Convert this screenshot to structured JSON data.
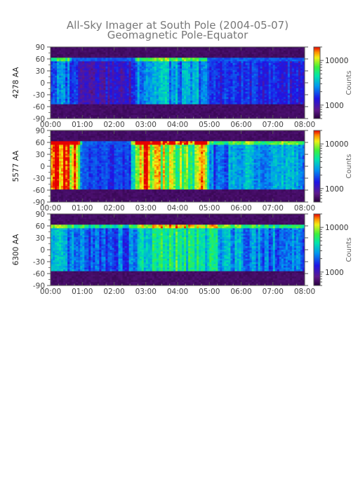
{
  "chart_data": {
    "type": "heatmap",
    "title": "All-Sky Imager at South Pole (2004-05-07)",
    "subtitle": "Geomagnetic Pole-Equator",
    "x_tick_labels": [
      "00:00",
      "01:00",
      "02:00",
      "03:00",
      "04:00",
      "05:00",
      "06:00",
      "07:00",
      "08:00"
    ],
    "xlim": [
      0,
      8
    ],
    "y_tick_labels": [
      "90",
      "60",
      "30",
      "0",
      "-30",
      "-60",
      "-90"
    ],
    "ylim": [
      -90,
      90
    ],
    "panels": [
      {
        "ylabel": "4278 AA",
        "colorbar": {
          "label": "Counts",
          "tick_labels": [
            "10000",
            "1000"
          ],
          "scale": "log",
          "range": [
            500,
            20000
          ]
        },
        "valid_lat_range": [
          -55,
          65
        ],
        "activity_profile": [
          {
            "x": 0.0,
            "level": 0.35
          },
          {
            "x": 0.5,
            "level": 0.4
          },
          {
            "x": 0.8,
            "level": 0.3
          },
          {
            "x": 1.0,
            "level": 0.2
          },
          {
            "x": 2.5,
            "level": 0.2
          },
          {
            "x": 2.8,
            "level": 0.45
          },
          {
            "x": 3.5,
            "level": 0.5
          },
          {
            "x": 4.0,
            "level": 0.4
          },
          {
            "x": 4.8,
            "level": 0.45
          },
          {
            "x": 5.0,
            "level": 0.3
          },
          {
            "x": 6.5,
            "level": 0.3
          },
          {
            "x": 8.0,
            "level": 0.25
          }
        ]
      },
      {
        "ylabel": "5577 AA",
        "colorbar": {
          "label": "Counts",
          "tick_labels": [
            "10000",
            "1000"
          ],
          "scale": "log",
          "range": [
            500,
            20000
          ]
        },
        "valid_lat_range": [
          -60,
          65
        ],
        "activity_profile": [
          {
            "x": 0.0,
            "level": 0.8
          },
          {
            "x": 0.4,
            "level": 0.95
          },
          {
            "x": 0.8,
            "level": 0.85
          },
          {
            "x": 1.0,
            "level": 0.35
          },
          {
            "x": 2.5,
            "level": 0.3
          },
          {
            "x": 2.8,
            "level": 0.9
          },
          {
            "x": 3.5,
            "level": 0.75
          },
          {
            "x": 4.5,
            "level": 0.65
          },
          {
            "x": 4.9,
            "level": 0.85
          },
          {
            "x": 5.0,
            "level": 0.35
          },
          {
            "x": 6.0,
            "level": 0.45
          },
          {
            "x": 6.5,
            "level": 0.5
          },
          {
            "x": 8.0,
            "level": 0.4
          }
        ]
      },
      {
        "ylabel": "6300 AA",
        "colorbar": {
          "label": "Counts",
          "tick_labels": [
            "10000",
            "1000"
          ],
          "scale": "log",
          "range": [
            500,
            20000
          ]
        },
        "valid_lat_range": [
          -55,
          65
        ],
        "activity_profile": [
          {
            "x": 0.0,
            "level": 0.45
          },
          {
            "x": 1.0,
            "level": 0.35
          },
          {
            "x": 2.5,
            "level": 0.35
          },
          {
            "x": 3.0,
            "level": 0.55
          },
          {
            "x": 4.0,
            "level": 0.6
          },
          {
            "x": 5.0,
            "level": 0.55
          },
          {
            "x": 6.0,
            "level": 0.45
          },
          {
            "x": 7.0,
            "level": 0.4
          },
          {
            "x": 8.0,
            "level": 0.35
          }
        ]
      }
    ]
  }
}
